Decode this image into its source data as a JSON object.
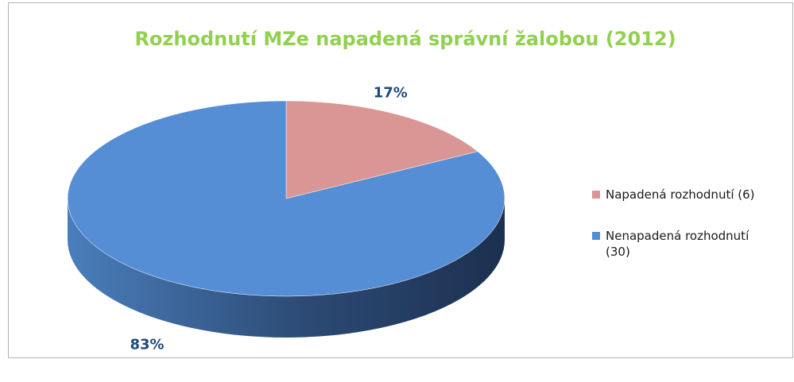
{
  "chart_data": {
    "type": "pie",
    "title": "Rozhodnutí MZe napadená správní žalobou (2012)",
    "categories": [
      "Napadená rozhodnutí (6)",
      "Nenapadená rozhodnutí (30)"
    ],
    "values": [
      17,
      83
    ],
    "value_labels": [
      "17%",
      "83%"
    ],
    "colors": [
      "#d99694",
      "#558ed5"
    ],
    "legend": "right"
  }
}
